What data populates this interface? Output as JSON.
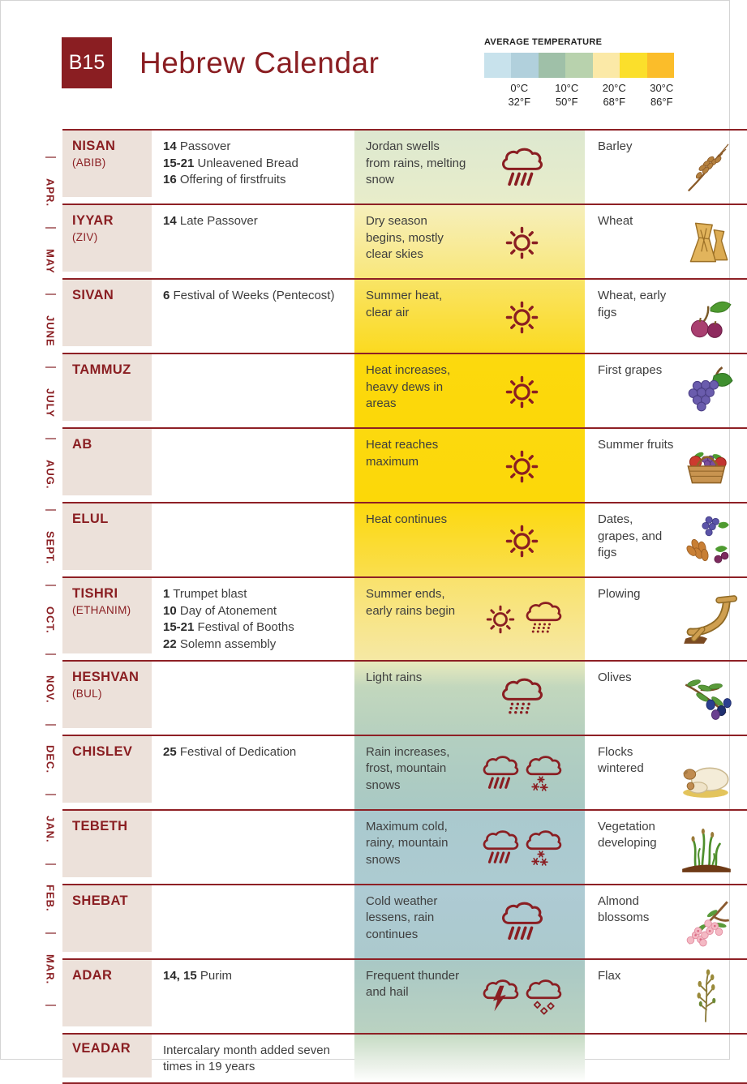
{
  "header": {
    "badge": "B15",
    "title": "Hebrew Calendar"
  },
  "legend": {
    "title": "AVERAGE TEMPERATURE",
    "swatches": [
      "#c8e2ec",
      "#b1d0dc",
      "#9fc0a8",
      "#b8d2ad",
      "#fbe9a7",
      "#fbdf2b",
      "#fbbd2a"
    ],
    "labels": [
      {
        "c": "0°C",
        "f": "32°F"
      },
      {
        "c": "10°C",
        "f": "50°F"
      },
      {
        "c": "20°C",
        "f": "68°F"
      },
      {
        "c": "30°C",
        "f": "86°F"
      }
    ]
  },
  "rail": {
    "months": [
      "APR.",
      "MAY",
      "JUNE",
      "JULY",
      "AUG.",
      "SEPT.",
      "OCT.",
      "NOV.",
      "DEC.",
      "JAN.",
      "FEB.",
      "MAR."
    ]
  },
  "colors": {
    "maroon": "#8a1e22",
    "month_bg": "#ece1da",
    "separator": "#8e2025"
  },
  "rows": [
    {
      "month": "NISAN",
      "alt": "(ABIB)",
      "events": [
        {
          "n": "14",
          "t": "Passover"
        },
        {
          "n": "15-21",
          "t": "Unleavened Bread"
        },
        {
          "n": "16",
          "t": "Offering of firstfruits"
        }
      ],
      "note": "",
      "weather": "Jordan swells from rains, melting snow",
      "icons": [
        "rain-cloud"
      ],
      "crops": "Barley",
      "illustration": "barley",
      "temp": [
        "#dde8d0",
        "#e8edca"
      ],
      "short": false
    },
    {
      "month": "IYYAR",
      "alt": "(ZIV)",
      "events": [
        {
          "n": "14",
          "t": "Late Passover"
        }
      ],
      "note": "",
      "weather": "Dry season begins, mostly clear skies",
      "icons": [
        "sun"
      ],
      "crops": "Wheat",
      "illustration": "wheat-sheaves",
      "temp": [
        "#f6efbc",
        "#f9e77b"
      ],
      "short": false
    },
    {
      "month": "SIVAN",
      "alt": "",
      "events": [
        {
          "n": "6",
          "t": "Festival of Weeks (Pentecost)"
        }
      ],
      "note": "",
      "weather": "Summer heat, clear air",
      "icons": [
        "sun"
      ],
      "crops": "Wheat, early figs",
      "illustration": "figs",
      "temp": [
        "#f9e466",
        "#fbda20"
      ],
      "short": false
    },
    {
      "month": "TAMMUZ",
      "alt": "",
      "events": [],
      "note": "",
      "weather": "Heat increases, heavy dews in areas",
      "icons": [
        "sun"
      ],
      "crops": "First grapes",
      "illustration": "grapes",
      "temp": [
        "#fcd90e",
        "#fcd808"
      ],
      "short": false
    },
    {
      "month": "AB",
      "alt": "",
      "events": [],
      "note": "",
      "weather": "Heat reaches maximum",
      "icons": [
        "sun"
      ],
      "crops": "Summer fruits",
      "illustration": "fruit-basket",
      "temp": [
        "#fcd90e",
        "#fcd808"
      ],
      "short": false
    },
    {
      "month": "ELUL",
      "alt": "",
      "events": [],
      "note": "",
      "weather": "Heat continues",
      "icons": [
        "sun"
      ],
      "crops": "Dates, grapes, and figs",
      "illustration": "dates-grapes-figs",
      "temp": [
        "#fcd90e",
        "#fade4e"
      ],
      "short": false
    },
    {
      "month": "TISHRI",
      "alt": "(ETHANIM)",
      "events": [
        {
          "n": "1",
          "t": "Trumpet blast"
        },
        {
          "n": "10",
          "t": "Day of Atonement"
        },
        {
          "n": "15-21",
          "t": "Festival of Booths"
        },
        {
          "n": "22",
          "t": "Solemn assembly"
        }
      ],
      "note": "",
      "weather": "Summer ends, early rains begin",
      "icons": [
        "sun",
        "drizzle-cloud"
      ],
      "crops": "Plowing",
      "illustration": "plow",
      "temp": [
        "#f9e26c",
        "#f6e8a4"
      ],
      "short": false
    },
    {
      "month": "HESHVAN",
      "alt": "(BUL)",
      "events": [],
      "note": "",
      "weather": "Light rains",
      "icons": [
        "drizzle-cloud"
      ],
      "crops": "Olives",
      "illustration": "olives",
      "temp": [
        "#e8eabd",
        "#c2d7bd 35%",
        "#b6d0bf"
      ],
      "short": false
    },
    {
      "month": "CHISLEV",
      "alt": "",
      "events": [
        {
          "n": "25",
          "t": "Festival of Dedication"
        }
      ],
      "note": "",
      "weather": "Rain increases, frost, mountain snows",
      "icons": [
        "rain-cloud",
        "snow-cloud"
      ],
      "crops": "Flocks wintered",
      "illustration": "sheep",
      "temp": [
        "#b3cfc0",
        "#a9c9c4"
      ],
      "short": false
    },
    {
      "month": "TEBETH",
      "alt": "",
      "events": [],
      "note": "",
      "weather": "Maximum cold, rainy, mountain snows",
      "icons": [
        "rain-cloud",
        "snow-cloud"
      ],
      "crops": "Vegetation developing",
      "illustration": "sprouts",
      "temp": [
        "#aac9ce",
        "#accbd1"
      ],
      "short": false
    },
    {
      "month": "SHEBAT",
      "alt": "",
      "events": [],
      "note": "",
      "weather": "Cold weather lessens, rain continues",
      "icons": [
        "rain-cloud"
      ],
      "crops": "Almond blossoms",
      "illustration": "almond-blossoms",
      "temp": [
        "#aecbd4",
        "#abc9cd"
      ],
      "short": false
    },
    {
      "month": "ADAR",
      "alt": "",
      "events": [
        {
          "n": "14, 15",
          "t": "Purim"
        }
      ],
      "note": "",
      "weather": "Frequent thunder and hail",
      "icons": [
        "thunder-cloud",
        "hail-cloud"
      ],
      "crops": "Flax",
      "illustration": "flax",
      "temp": [
        "#a9c8c5",
        "#bad2c1"
      ],
      "short": false
    },
    {
      "month": "VEADAR",
      "alt": "",
      "events": [],
      "note": "Intercalary month added seven times in 19 years",
      "weather": "",
      "icons": [],
      "crops": "",
      "illustration": "",
      "temp": [
        "#c6dbc4",
        "#eef3ec 70%",
        "#ffffff"
      ],
      "short": true
    }
  ]
}
